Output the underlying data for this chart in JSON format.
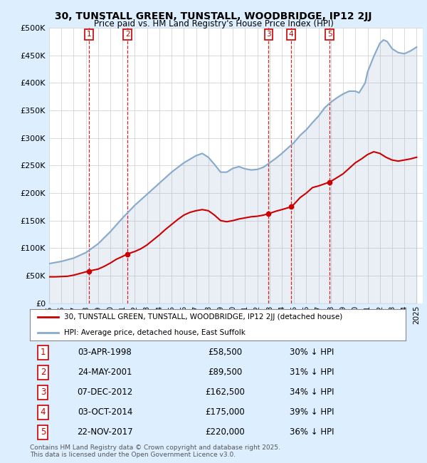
{
  "title_line1": "30, TUNSTALL GREEN, TUNSTALL, WOODBRIDGE, IP12 2JJ",
  "title_line2": "Price paid vs. HM Land Registry's House Price Index (HPI)",
  "ylabel_ticks": [
    "£0",
    "£50K",
    "£100K",
    "£150K",
    "£200K",
    "£250K",
    "£300K",
    "£350K",
    "£400K",
    "£450K",
    "£500K"
  ],
  "ylim": [
    0,
    500000
  ],
  "xlim_start": 1995.0,
  "xlim_end": 2025.5,
  "sale_dates": [
    1998.25,
    2001.4,
    2012.92,
    2014.75,
    2017.9
  ],
  "sale_prices": [
    58500,
    89500,
    162500,
    175000,
    220000
  ],
  "sale_labels": [
    "1",
    "2",
    "3",
    "4",
    "5"
  ],
  "sale_label_color": "#cc0000",
  "sale_line_color": "#cc0000",
  "hpi_color": "#88aacc",
  "background_color": "#ddeeff",
  "plot_bg_color": "#ffffff",
  "legend_sale_label": "30, TUNSTALL GREEN, TUNSTALL, WOODBRIDGE, IP12 2JJ (detached house)",
  "legend_hpi_label": "HPI: Average price, detached house, East Suffolk",
  "footer_text": "Contains HM Land Registry data © Crown copyright and database right 2025.\nThis data is licensed under the Open Government Licence v3.0.",
  "table_rows": [
    [
      "1",
      "03-APR-1998",
      "£58,500",
      "30% ↓ HPI"
    ],
    [
      "2",
      "24-MAY-2001",
      "£89,500",
      "31% ↓ HPI"
    ],
    [
      "3",
      "07-DEC-2012",
      "£162,500",
      "34% ↓ HPI"
    ],
    [
      "4",
      "03-OCT-2014",
      "£175,000",
      "39% ↓ HPI"
    ],
    [
      "5",
      "22-NOV-2017",
      "£220,000",
      "36% ↓ HPI"
    ]
  ],
  "hpi_x": [
    1995,
    1996,
    1997,
    1998,
    1999,
    2000,
    2001,
    2002,
    2003,
    2004,
    2005,
    2006,
    2007,
    2007.5,
    2008,
    2008.5,
    2009,
    2009.5,
    2010,
    2010.5,
    2011,
    2011.5,
    2012,
    2012.5,
    2013,
    2013.5,
    2014,
    2014.5,
    2015,
    2015.5,
    2016,
    2016.5,
    2017,
    2017.5,
    2018,
    2018.5,
    2019,
    2019.5,
    2020,
    2020.3,
    2020.8,
    2021,
    2021.5,
    2022,
    2022.3,
    2022.6,
    2023,
    2023.5,
    2024,
    2024.5,
    2025
  ],
  "hpi_y": [
    72000,
    76000,
    82000,
    92000,
    108000,
    130000,
    155000,
    178000,
    198000,
    218000,
    238000,
    255000,
    268000,
    272000,
    265000,
    252000,
    238000,
    238000,
    245000,
    248000,
    244000,
    242000,
    243000,
    247000,
    255000,
    263000,
    272000,
    282000,
    292000,
    305000,
    315000,
    328000,
    340000,
    355000,
    365000,
    373000,
    380000,
    385000,
    385000,
    382000,
    400000,
    420000,
    448000,
    472000,
    478000,
    475000,
    462000,
    455000,
    453000,
    458000,
    465000
  ],
  "red_x": [
    1995,
    1995.5,
    1996,
    1996.5,
    1997,
    1997.5,
    1998.25,
    1999,
    1999.5,
    2000,
    2000.5,
    2001.0,
    2001.4,
    2002,
    2002.5,
    2003,
    2003.5,
    2004,
    2004.5,
    2005,
    2005.5,
    2006,
    2006.5,
    2007,
    2007.5,
    2008,
    2008.5,
    2009,
    2009.5,
    2010,
    2010.5,
    2011,
    2011.5,
    2012,
    2012.5,
    2012.92,
    2013.5,
    2014.0,
    2014.75,
    2015,
    2015.5,
    2016,
    2016.5,
    2017.0,
    2017.9,
    2018.5,
    2019,
    2019.5,
    2020,
    2020.5,
    2021,
    2021.5,
    2022,
    2022.5,
    2023,
    2023.5,
    2024,
    2024.5,
    2025
  ],
  "red_y": [
    48000,
    48000,
    48500,
    49000,
    51000,
    54000,
    58500,
    62000,
    67000,
    73000,
    80000,
    85000,
    89500,
    94000,
    99000,
    106000,
    115000,
    124000,
    134000,
    143000,
    152000,
    160000,
    165000,
    168000,
    170000,
    168000,
    160000,
    150000,
    148000,
    150000,
    153000,
    155000,
    157000,
    158000,
    160000,
    162500,
    167000,
    170000,
    175000,
    180000,
    192000,
    200000,
    210000,
    213000,
    220000,
    228000,
    235000,
    245000,
    255000,
    262000,
    270000,
    275000,
    272000,
    265000,
    260000,
    258000,
    260000,
    262000,
    265000
  ]
}
